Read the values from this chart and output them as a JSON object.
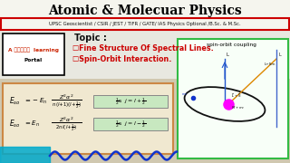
{
  "title": "Atomic & Molecuar Physics",
  "subtitle": "UPSC Geoscientist / CSIR / JEST / TIFR / GATE/ IAS Physics Optional /B.Sc. & M.Sc.",
  "portal_line1": "A फ़्री  learning",
  "portal_line2": "Portal",
  "topic_label": "Topic :",
  "bullet1": "☐Fine Structure Of Spectral Lines.",
  "bullet2": "☐Spin-Orbit Interaction.",
  "spin_orbit_label": "spin-orbit coupling",
  "bg_color": "#1a1a2e",
  "photo_bg": "#2d2d2d",
  "white_panel_color": "#f0ede0",
  "title_color": "#000000",
  "title_bg": "#f5f5f5",
  "subtitle_color": "#111111",
  "subtitle_border": "#cc0000",
  "subtitle_bg": "#f5f5f5",
  "topic_color": "#111111",
  "bullet_color": "#cc0000",
  "portal_bg": "#ffffff",
  "portal_border": "#000000",
  "portal_text_color": "#cc2200",
  "portal_text2_color": "#000000",
  "eq_box_bg": "#f0e8d0",
  "eq_box_border": "#cc8844",
  "eq_green_bg": "#c8e8c0",
  "eq_green_border": "#888888",
  "spin_box_border": "#33bb44",
  "spin_box_bg": "#f8fff8",
  "wave_color": "#1133cc",
  "pencil_color": "#00aacc"
}
